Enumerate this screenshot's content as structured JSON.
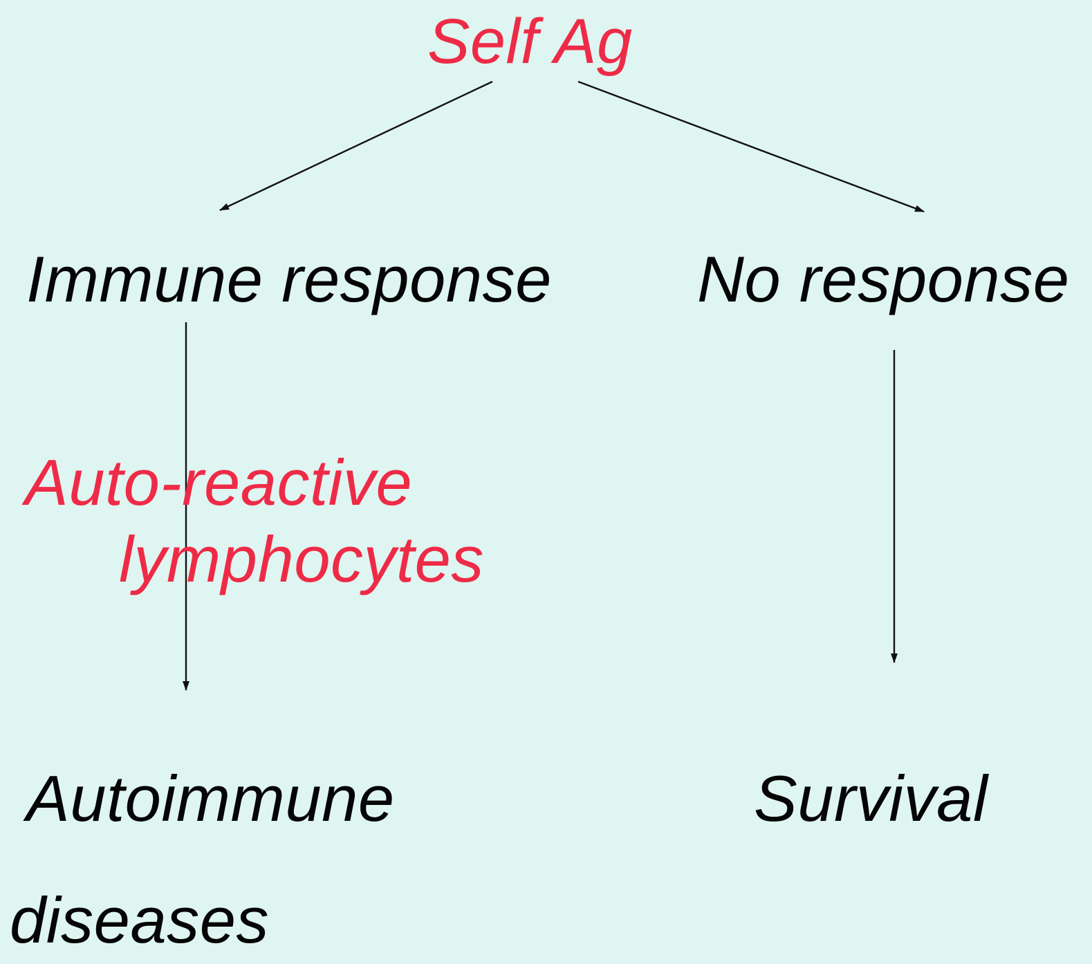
{
  "diagram": {
    "nodes": {
      "self_ag": {
        "label": "Self Ag"
      },
      "immune_response": {
        "label": "Immune response"
      },
      "no_response": {
        "label": "No response"
      },
      "auto_reactive": {
        "line1": "Auto-reactive",
        "line2": "lymphocytes"
      },
      "autoimmune": {
        "line1": "Autoimmune",
        "line2": "diseases"
      },
      "survival": {
        "label": "Survival"
      }
    },
    "edges": [
      {
        "from": "Self Ag",
        "to": "Immune response"
      },
      {
        "from": "Self Ag",
        "to": "No response"
      },
      {
        "from": "Immune response",
        "to": "Autoimmune diseases"
      },
      {
        "from": "No response",
        "to": "Survival"
      }
    ],
    "colors": {
      "background": "#dff5f1",
      "accent_text": "#ee2b47",
      "main_text": "#050505",
      "arrow": "#111111"
    }
  }
}
